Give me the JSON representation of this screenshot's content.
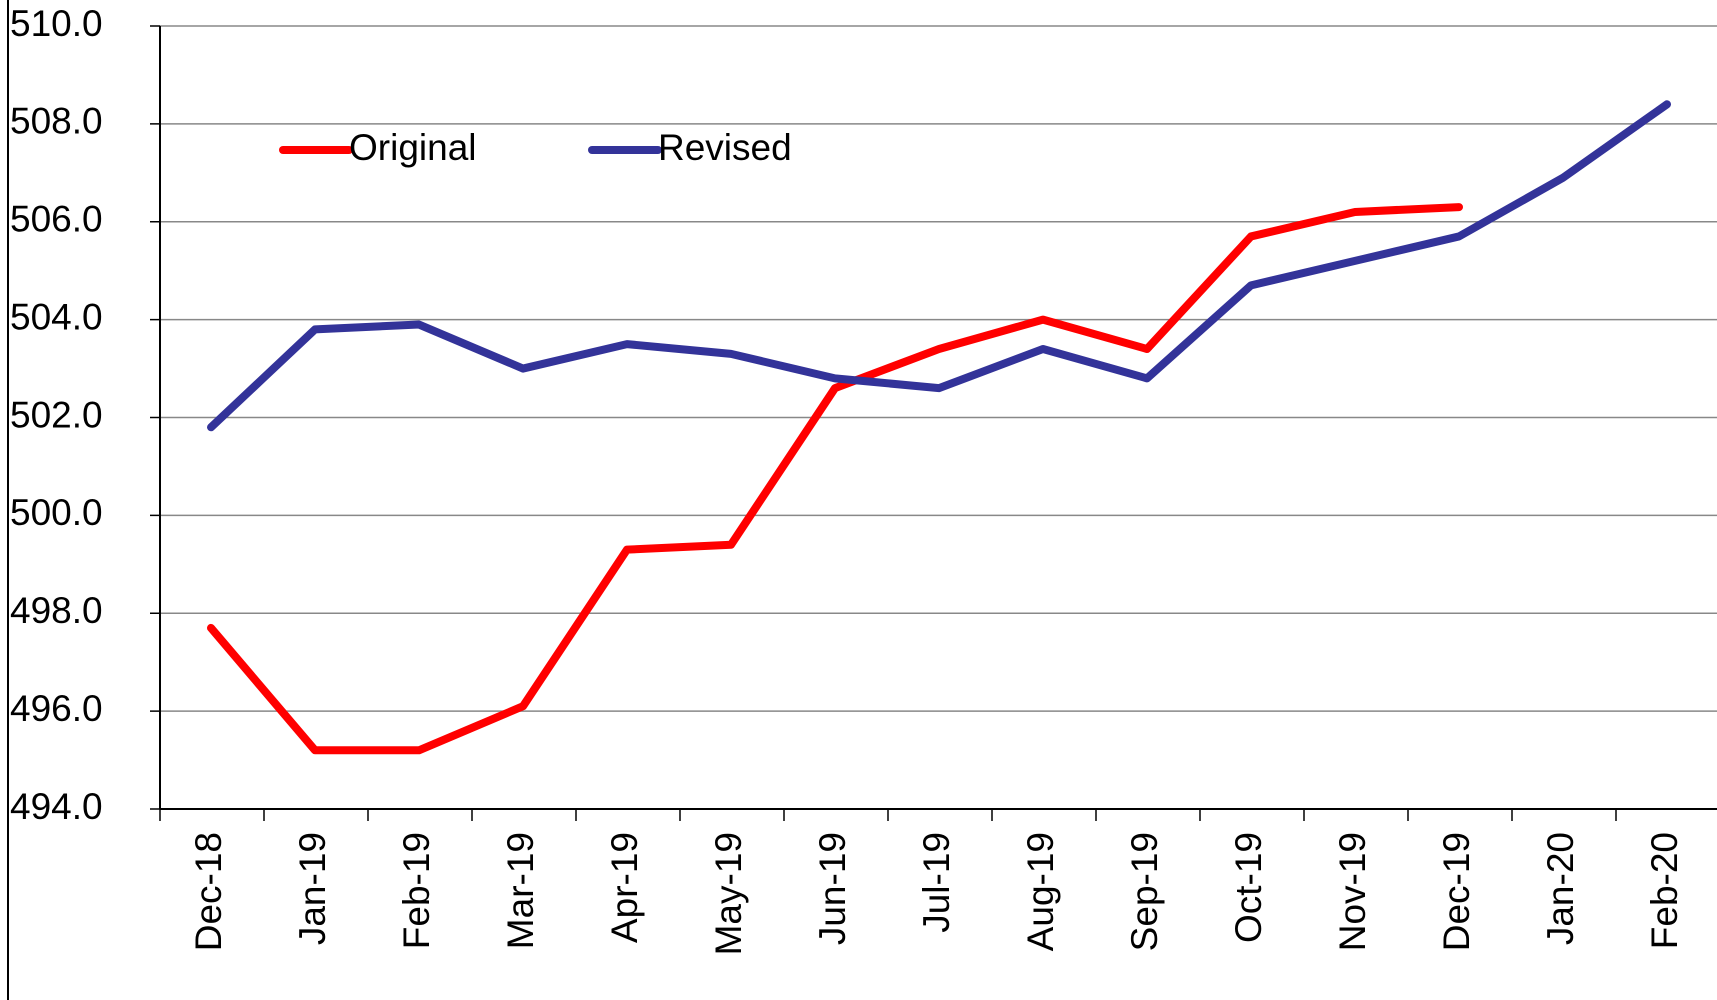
{
  "chart_data": {
    "type": "line",
    "categories": [
      "Dec-18",
      "Jan-19",
      "Feb-19",
      "Mar-19",
      "Apr-19",
      "May-19",
      "Jun-19",
      "Jul-19",
      "Aug-19",
      "Sep-19",
      "Oct-19",
      "Nov-19",
      "Dec-19",
      "Jan-20",
      "Feb-20"
    ],
    "series": [
      {
        "name": "Original",
        "color": "#ff0000",
        "values": [
          497.7,
          495.2,
          495.2,
          496.1,
          499.3,
          499.4,
          502.6,
          503.4,
          504.0,
          503.4,
          505.7,
          506.2,
          506.3,
          null,
          null
        ]
      },
      {
        "name": "Revised",
        "color": "#333399",
        "values": [
          501.8,
          503.8,
          503.9,
          503.0,
          503.5,
          503.3,
          502.8,
          502.6,
          503.4,
          502.8,
          504.7,
          505.2,
          505.7,
          506.9,
          508.4
        ]
      }
    ],
    "ylim": [
      494,
      510
    ],
    "yticks": [
      {
        "value": 494,
        "label": "494.0"
      },
      {
        "value": 496,
        "label": "496.0"
      },
      {
        "value": 498,
        "label": "498.0"
      },
      {
        "value": 500,
        "label": "500.0"
      },
      {
        "value": 502,
        "label": "502.0"
      },
      {
        "value": 504,
        "label": "504.0"
      },
      {
        "value": 506,
        "label": "506.0"
      },
      {
        "value": 508,
        "label": "508.0"
      },
      {
        "value": 510,
        "label": "510.0"
      }
    ],
    "grid": true,
    "legend": "top-left"
  }
}
